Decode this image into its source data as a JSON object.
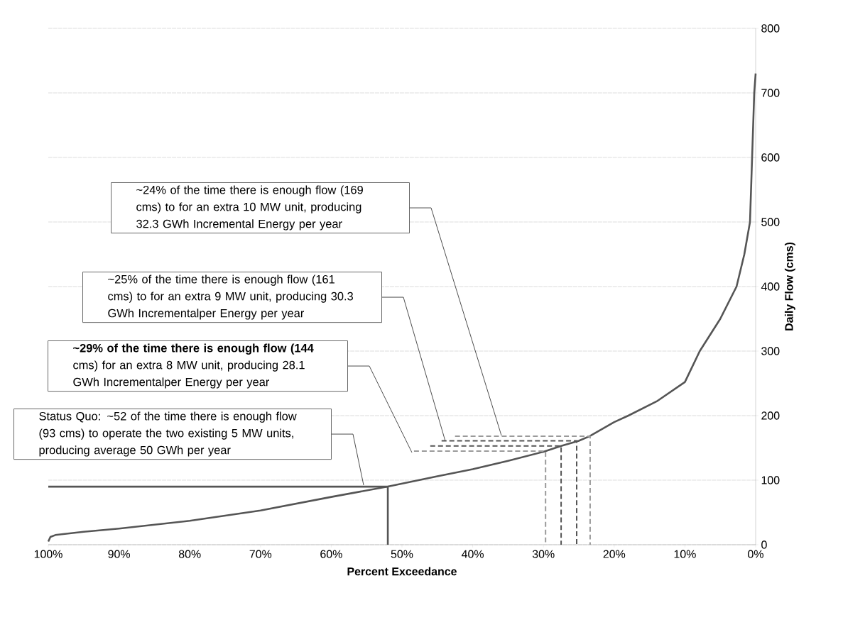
{
  "chart_data": {
    "type": "line",
    "xlabel": "Percent Exceedance",
    "ylabel": "Daily Flow (cms)",
    "xlim": [
      100,
      0
    ],
    "ylim": [
      0,
      800
    ],
    "xticks": [
      {
        "value": 100,
        "label": "100%"
      },
      {
        "value": 90,
        "label": "90%"
      },
      {
        "value": 80,
        "label": "80%"
      },
      {
        "value": 70,
        "label": "70%"
      },
      {
        "value": 60,
        "label": "60%"
      },
      {
        "value": 50,
        "label": "50%"
      },
      {
        "value": 40,
        "label": "40%"
      },
      {
        "value": 30,
        "label": "30%"
      },
      {
        "value": 20,
        "label": "20%"
      },
      {
        "value": 10,
        "label": "10%"
      },
      {
        "value": 0,
        "label": "0%"
      }
    ],
    "yticks": [
      0,
      100,
      200,
      300,
      400,
      500,
      600,
      700,
      800
    ],
    "grid": "y",
    "marker": "none",
    "series": [
      {
        "color": "#555555",
        "line_style": "solid",
        "x": [
          100,
          99.7,
          99,
          95,
          90,
          80,
          70,
          60,
          52,
          45,
          40,
          35,
          30,
          27.5,
          25,
          23.5,
          20,
          18,
          14,
          10,
          7.9,
          5,
          2.7,
          1.6,
          0.8,
          0.5,
          0.2,
          0
        ],
        "values": [
          5,
          12,
          15,
          20,
          25,
          37,
          53,
          74,
          90,
          106,
          117,
          130,
          144,
          153,
          161,
          168,
          190,
          200,
          222,
          252,
          300,
          350,
          400,
          450,
          500,
          600,
          700,
          730
        ]
      },
      {
        "color": "#555555",
        "line_style": "solid",
        "x": [
          100,
          52,
          52
        ],
        "values": [
          90,
          90,
          0
        ]
      },
      {
        "color": "#9a9a9a",
        "line_style": "dashed",
        "x": [
          48.3,
          29.7,
          29.7
        ],
        "values": [
          145,
          145,
          0
        ]
      },
      {
        "color": "#555555",
        "line_style": "dashed",
        "x": [
          46,
          27.5,
          27.5
        ],
        "values": [
          153,
          153,
          0
        ]
      },
      {
        "color": "#555555",
        "line_style": "dashed",
        "x": [
          44.4,
          25.3,
          25.3
        ],
        "values": [
          161,
          161,
          0
        ]
      },
      {
        "color": "#9a9a9a",
        "line_style": "dashed",
        "x": [
          42.5,
          23.4,
          23.4
        ],
        "values": [
          168,
          168,
          0
        ]
      }
    ],
    "annotations": [
      "~24% of the time there is enough flow (169 cms) to for an extra 10 MW unit, producing 32.3 GWh Incremental Energy per year",
      "~25% of the time there is enough flow (161 cms) to for an extra 9 MW unit, producing 30.3 GWh Incrementalper Energy per year",
      "**~29% of the time there is enough flow (144** cms) for an extra 8 MW unit, producing 28.1 GWh Incrementalper Energy per year",
      "Status Quo: ~52 of the time there is enough flow (93 cms) to operate the two existing 5 MW units, producing average 50 GWh per year"
    ]
  }
}
